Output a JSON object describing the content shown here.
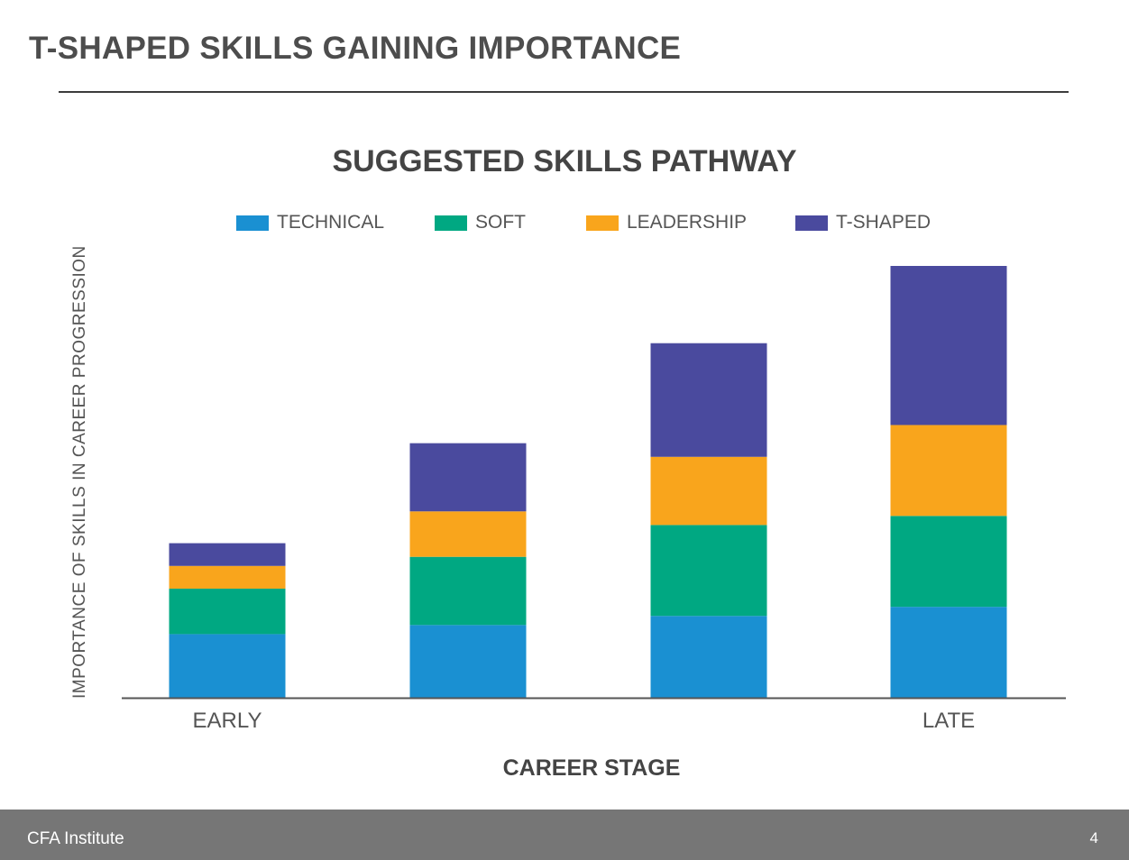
{
  "slide": {
    "title": "T-SHAPED SKILLS GAINING IMPORTANCE",
    "footer_org": "CFA Institute",
    "page_number": "4"
  },
  "colors": {
    "technical": "#1a90d2",
    "soft": "#00a882",
    "leadership": "#f9a51c",
    "t_shaped": "#4a4a9e",
    "axis": "#555555"
  },
  "chart_data": {
    "type": "bar",
    "stacked": true,
    "title": "SUGGESTED SKILLS PATHWAY",
    "xlabel": "CAREER STAGE",
    "ylabel": "IMPORTANCE OF SKILLS IN CAREER PROGRESSION",
    "tick_labels": [
      "EARLY",
      "",
      "",
      "LATE"
    ],
    "categories": [
      "EARLY",
      "",
      "",
      "LATE"
    ],
    "series": [
      {
        "name": "TECHNICAL",
        "color": "#1a90d2",
        "values": [
          7,
          8,
          9,
          10
        ]
      },
      {
        "name": "SOFT",
        "color": "#00a882",
        "values": [
          5,
          7.5,
          10,
          10
        ]
      },
      {
        "name": "LEADERSHIP",
        "color": "#f9a51c",
        "values": [
          2.5,
          5,
          7.5,
          10
        ]
      },
      {
        "name": "T-SHAPED",
        "color": "#4a4a9e",
        "values": [
          2.5,
          7.5,
          12.5,
          17.5
        ]
      }
    ],
    "ylim": [
      0,
      47.5
    ],
    "grid": false,
    "legend_position": "top",
    "y_axis_ticks_shown": false
  }
}
